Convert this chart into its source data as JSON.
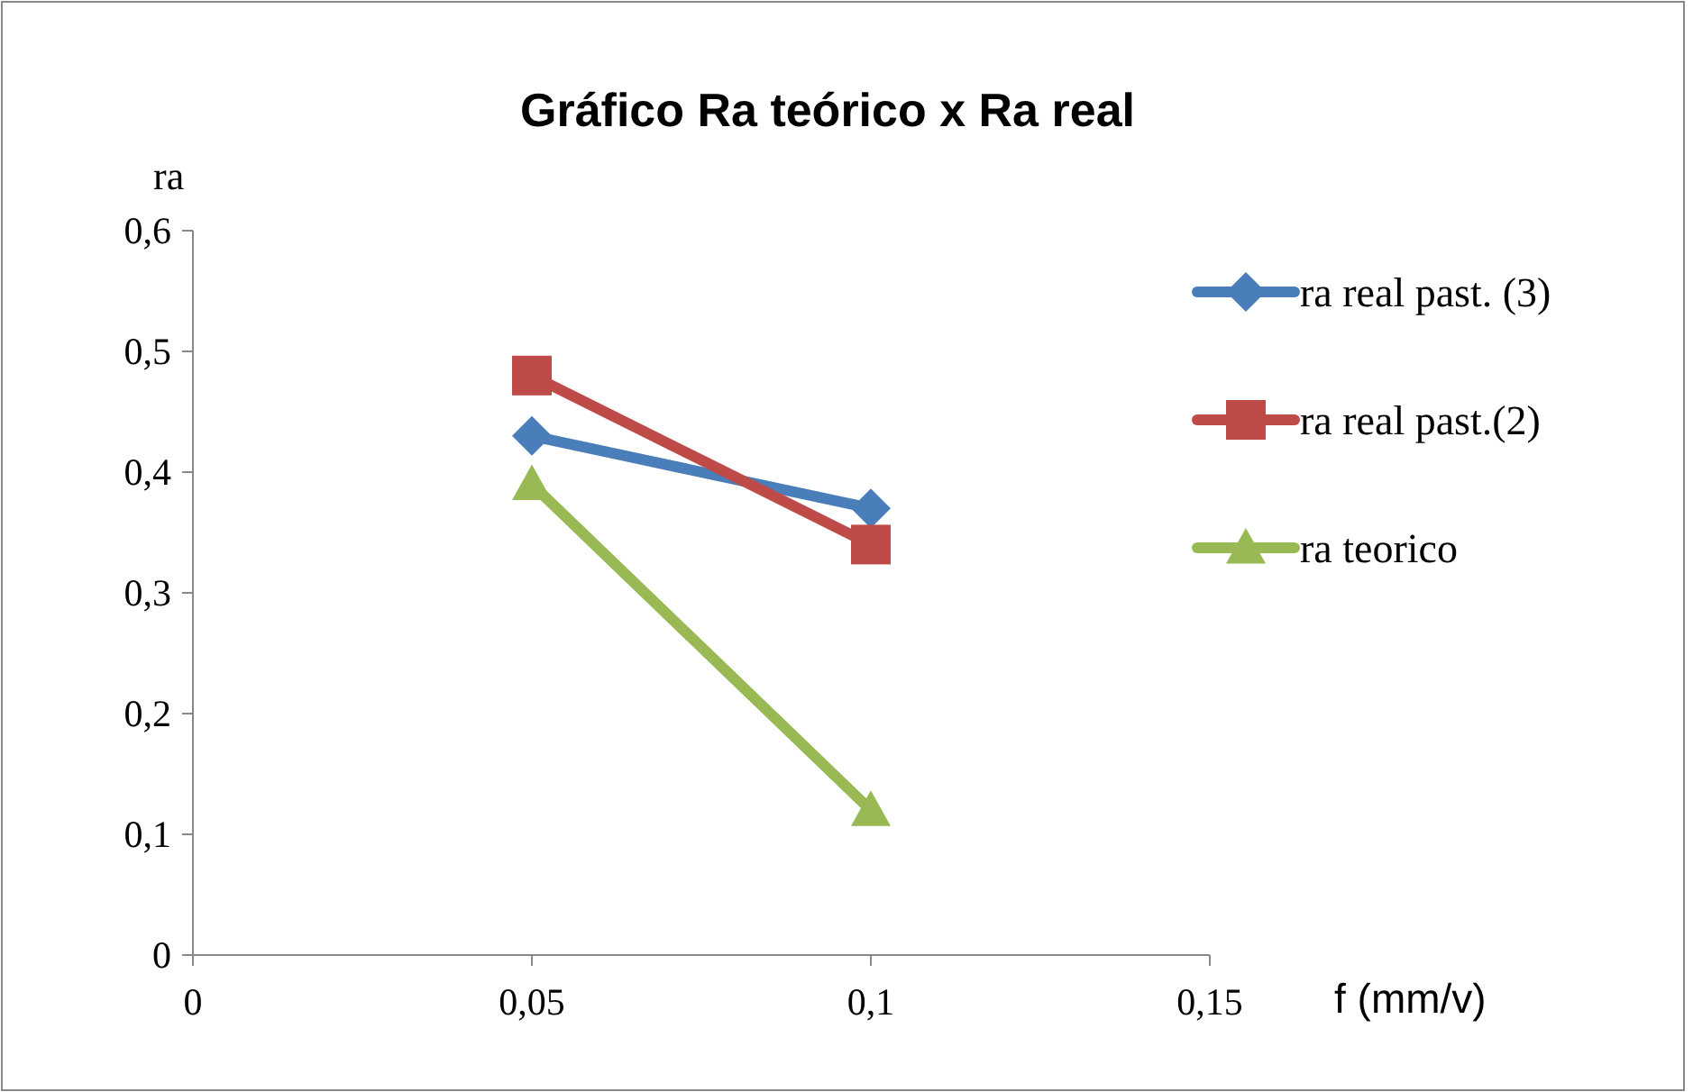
{
  "chart_data": {
    "type": "line",
    "title": "Gráfico Ra teórico x Ra real",
    "xlabel": "f (mm/v)",
    "ylabel": "ra",
    "x": [
      0.05,
      0.1
    ],
    "series": [
      {
        "name": "ra real past. (3)",
        "color": "#4a7ebb",
        "values": [
          0.43,
          0.37
        ],
        "marker": "diamond"
      },
      {
        "name": "ra real past.(2)",
        "color": "#be4b48",
        "values": [
          0.48,
          0.34
        ],
        "marker": "square"
      },
      {
        "name": "ra teorico",
        "color": "#98b954",
        "values": [
          0.39,
          0.12
        ],
        "marker": "triangle"
      }
    ],
    "xlim": [
      0,
      0.15
    ],
    "xticks": [
      {
        "value": 0,
        "label": "0"
      },
      {
        "value": 0.05,
        "label": "0,05"
      },
      {
        "value": 0.1,
        "label": "0,1"
      },
      {
        "value": 0.15,
        "label": "0,15"
      }
    ],
    "ylim": [
      0,
      0.6
    ],
    "yticks": [
      {
        "value": 0,
        "label": "0"
      },
      {
        "value": 0.1,
        "label": "0,1"
      },
      {
        "value": 0.2,
        "label": "0,2"
      },
      {
        "value": 0.3,
        "label": "0,3"
      },
      {
        "value": 0.4,
        "label": "0,4"
      },
      {
        "value": 0.5,
        "label": "0,5"
      },
      {
        "value": 0.6,
        "label": "0,6"
      }
    ],
    "grid": false,
    "legend": "right",
    "line_style": "solid"
  }
}
